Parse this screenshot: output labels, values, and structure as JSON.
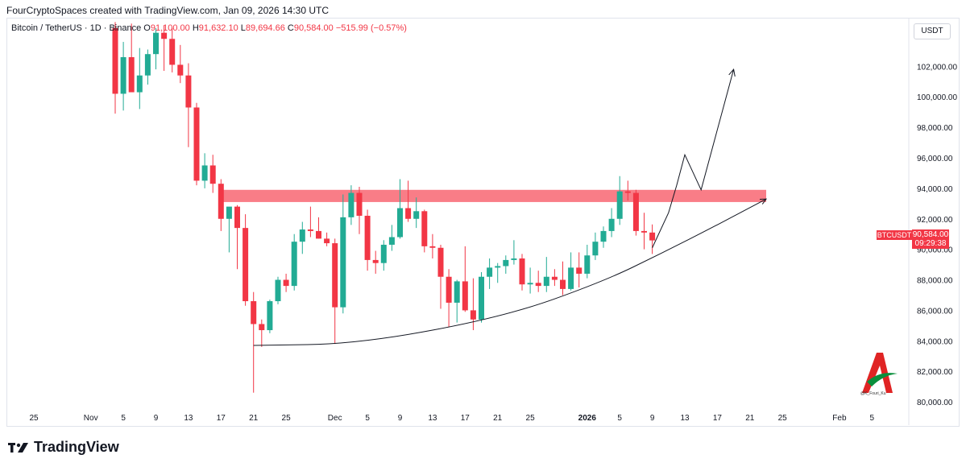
{
  "header": {
    "caption": "FourCryptoSpaces created with TradingView.com, Jan 09, 2026 14:30 UTC"
  },
  "legend": {
    "symbol": "Bitcoin / TetherUS · 1D · Binance",
    "open_label": "O",
    "open": "91,100.00",
    "high_label": "H",
    "high": "91,632.10",
    "low_label": "L",
    "low": "89,694.66",
    "close_label": "C",
    "close": "90,584.00",
    "change": "−515.99 (−0.57%)"
  },
  "currency": "USDT",
  "last_price": {
    "symbol": "BTCUSDT",
    "price": "90,584.00",
    "countdown": "09:29:38"
  },
  "brand": {
    "name": "TradingView"
  },
  "watermark_handle": "@K_Fouri_Ku",
  "colors": {
    "up": "#22ab94",
    "down": "#f23645",
    "resistance": "#f7525f",
    "line": "#131722"
  },
  "chart_data": {
    "type": "candlestick",
    "title": "Bitcoin / TetherUS · 1D · Binance",
    "ylim": [
      79000,
      104500
    ],
    "y_ticks": [
      "80,000.00",
      "82,000.00",
      "84,000.00",
      "86,000.00",
      "88,000.00",
      "90,000.00",
      "92,000.00",
      "94,000.00",
      "96,000.00",
      "98,000.00",
      "100,000.00",
      "102,000.00"
    ],
    "y_tick_values": [
      80000,
      82000,
      84000,
      86000,
      88000,
      90000,
      92000,
      94000,
      96000,
      98000,
      100000,
      102000
    ],
    "x_ticks": [
      {
        "label": "25",
        "index": -10
      },
      {
        "label": "Nov",
        "index": -3
      },
      {
        "label": "5",
        "index": 1
      },
      {
        "label": "9",
        "index": 5
      },
      {
        "label": "13",
        "index": 9
      },
      {
        "label": "17",
        "index": 13
      },
      {
        "label": "21",
        "index": 17
      },
      {
        "label": "25",
        "index": 21
      },
      {
        "label": "Dec",
        "index": 27
      },
      {
        "label": "5",
        "index": 31
      },
      {
        "label": "9",
        "index": 35
      },
      {
        "label": "13",
        "index": 39
      },
      {
        "label": "17",
        "index": 43
      },
      {
        "label": "21",
        "index": 47
      },
      {
        "label": "25",
        "index": 51
      },
      {
        "label": "2026",
        "index": 58
      },
      {
        "label": "5",
        "index": 62
      },
      {
        "label": "9",
        "index": 66
      },
      {
        "label": "13",
        "index": 70
      },
      {
        "label": "17",
        "index": 74
      },
      {
        "label": "21",
        "index": 78
      },
      {
        "label": "25",
        "index": 82
      },
      {
        "label": "Feb",
        "index": 89
      },
      {
        "label": "5",
        "index": 93
      }
    ],
    "candles": [
      {
        "o": 104500,
        "h": 104900,
        "l": 98900,
        "c": 100200
      },
      {
        "o": 100200,
        "h": 103600,
        "l": 99100,
        "c": 102600
      },
      {
        "o": 102600,
        "h": 104800,
        "l": 100400,
        "c": 100300
      },
      {
        "o": 100300,
        "h": 103200,
        "l": 99200,
        "c": 101400
      },
      {
        "o": 101400,
        "h": 103100,
        "l": 100800,
        "c": 102800
      },
      {
        "o": 102800,
        "h": 104500,
        "l": 101800,
        "c": 104200
      },
      {
        "o": 104200,
        "h": 104700,
        "l": 101700,
        "c": 103800
      },
      {
        "o": 103800,
        "h": 104500,
        "l": 101600,
        "c": 102100
      },
      {
        "o": 102100,
        "h": 103400,
        "l": 100900,
        "c": 101400
      },
      {
        "o": 101400,
        "h": 102200,
        "l": 96700,
        "c": 99300
      },
      {
        "o": 99300,
        "h": 99600,
        "l": 94200,
        "c": 94500
      },
      {
        "o": 94500,
        "h": 96300,
        "l": 94000,
        "c": 95500
      },
      {
        "o": 95500,
        "h": 96200,
        "l": 93700,
        "c": 94300
      },
      {
        "o": 94300,
        "h": 94600,
        "l": 91200,
        "c": 92000
      },
      {
        "o": 92000,
        "h": 92600,
        "l": 89800,
        "c": 92800
      },
      {
        "o": 92800,
        "h": 92900,
        "l": 88700,
        "c": 91400
      },
      {
        "o": 91400,
        "h": 92300,
        "l": 86300,
        "c": 86600
      },
      {
        "o": 86600,
        "h": 87200,
        "l": 80600,
        "c": 85100
      },
      {
        "o": 85100,
        "h": 85400,
        "l": 83600,
        "c": 84700
      },
      {
        "o": 84700,
        "h": 86700,
        "l": 84500,
        "c": 86600
      },
      {
        "o": 86600,
        "h": 88200,
        "l": 86400,
        "c": 88000
      },
      {
        "o": 88000,
        "h": 88400,
        "l": 87200,
        "c": 87600
      },
      {
        "o": 87600,
        "h": 91000,
        "l": 87300,
        "c": 90500
      },
      {
        "o": 90500,
        "h": 91800,
        "l": 89700,
        "c": 91300
      },
      {
        "o": 91300,
        "h": 92800,
        "l": 90800,
        "c": 91200
      },
      {
        "o": 91200,
        "h": 92100,
        "l": 90700,
        "c": 90700
      },
      {
        "o": 90700,
        "h": 91100,
        "l": 90200,
        "c": 90400
      },
      {
        "o": 90400,
        "h": 90700,
        "l": 83800,
        "c": 86200
      },
      {
        "o": 86200,
        "h": 93600,
        "l": 85800,
        "c": 92100
      },
      {
        "o": 92100,
        "h": 94200,
        "l": 91600,
        "c": 93700
      },
      {
        "o": 93700,
        "h": 94100,
        "l": 91000,
        "c": 92200
      },
      {
        "o": 92200,
        "h": 92600,
        "l": 88600,
        "c": 89300
      },
      {
        "o": 89300,
        "h": 89900,
        "l": 88400,
        "c": 89100
      },
      {
        "o": 89100,
        "h": 90600,
        "l": 88600,
        "c": 90300
      },
      {
        "o": 90300,
        "h": 91600,
        "l": 89900,
        "c": 90800
      },
      {
        "o": 90800,
        "h": 94600,
        "l": 90700,
        "c": 92700
      },
      {
        "o": 92700,
        "h": 94500,
        "l": 91800,
        "c": 92000
      },
      {
        "o": 92000,
        "h": 93400,
        "l": 91400,
        "c": 92500
      },
      {
        "o": 92500,
        "h": 92600,
        "l": 89800,
        "c": 90200
      },
      {
        "o": 90200,
        "h": 91000,
        "l": 89400,
        "c": 90100
      },
      {
        "o": 90100,
        "h": 90300,
        "l": 86100,
        "c": 88200
      },
      {
        "o": 88200,
        "h": 88700,
        "l": 84900,
        "c": 86500
      },
      {
        "o": 86500,
        "h": 88000,
        "l": 85200,
        "c": 87900
      },
      {
        "o": 87900,
        "h": 90200,
        "l": 85900,
        "c": 86000
      },
      {
        "o": 86000,
        "h": 88100,
        "l": 84700,
        "c": 85400
      },
      {
        "o": 85400,
        "h": 88500,
        "l": 85200,
        "c": 88200
      },
      {
        "o": 88200,
        "h": 89400,
        "l": 87400,
        "c": 88800
      },
      {
        "o": 88800,
        "h": 89100,
        "l": 87800,
        "c": 88900
      },
      {
        "o": 88900,
        "h": 89600,
        "l": 88400,
        "c": 89300
      },
      {
        "o": 89300,
        "h": 90600,
        "l": 89000,
        "c": 89400
      },
      {
        "o": 89400,
        "h": 89700,
        "l": 87300,
        "c": 87700
      },
      {
        "o": 87700,
        "h": 88800,
        "l": 87100,
        "c": 87800
      },
      {
        "o": 87800,
        "h": 88600,
        "l": 87200,
        "c": 87600
      },
      {
        "o": 87600,
        "h": 89500,
        "l": 87200,
        "c": 88200
      },
      {
        "o": 88200,
        "h": 88700,
        "l": 87600,
        "c": 88000
      },
      {
        "o": 88000,
        "h": 89200,
        "l": 87000,
        "c": 87400
      },
      {
        "o": 87400,
        "h": 89800,
        "l": 87300,
        "c": 88800
      },
      {
        "o": 88800,
        "h": 89800,
        "l": 87500,
        "c": 88400
      },
      {
        "o": 88400,
        "h": 90300,
        "l": 88100,
        "c": 89600
      },
      {
        "o": 89600,
        "h": 91100,
        "l": 89300,
        "c": 90500
      },
      {
        "o": 90500,
        "h": 91500,
        "l": 90100,
        "c": 91200
      },
      {
        "o": 91200,
        "h": 92700,
        "l": 90800,
        "c": 92000
      },
      {
        "o": 92000,
        "h": 94800,
        "l": 91600,
        "c": 93800
      },
      {
        "o": 93800,
        "h": 94500,
        "l": 93200,
        "c": 93700
      },
      {
        "o": 93700,
        "h": 93900,
        "l": 90900,
        "c": 91200
      },
      {
        "o": 91200,
        "h": 92400,
        "l": 90000,
        "c": 91100
      },
      {
        "o": 91100,
        "h": 91632,
        "l": 89695,
        "c": 90584
      }
    ],
    "resistance_zone": {
      "x_start_index": 13,
      "x_end_index": 80,
      "low": 93100,
      "high": 93900
    },
    "support_curve": [
      {
        "i": 17,
        "p": 83700
      },
      {
        "i": 30,
        "p": 83800
      },
      {
        "i": 48,
        "p": 85600
      },
      {
        "i": 60,
        "p": 87900
      },
      {
        "i": 67,
        "p": 89700
      },
      {
        "i": 74,
        "p": 91600
      },
      {
        "i": 80,
        "p": 93300
      }
    ],
    "projection_path": [
      {
        "i": 66,
        "p": 90100
      },
      {
        "i": 68,
        "p": 92400
      },
      {
        "i": 69,
        "p": 94200
      },
      {
        "i": 70,
        "p": 96200
      },
      {
        "i": 72,
        "p": 93900
      },
      {
        "i": 76,
        "p": 101800
      }
    ]
  }
}
